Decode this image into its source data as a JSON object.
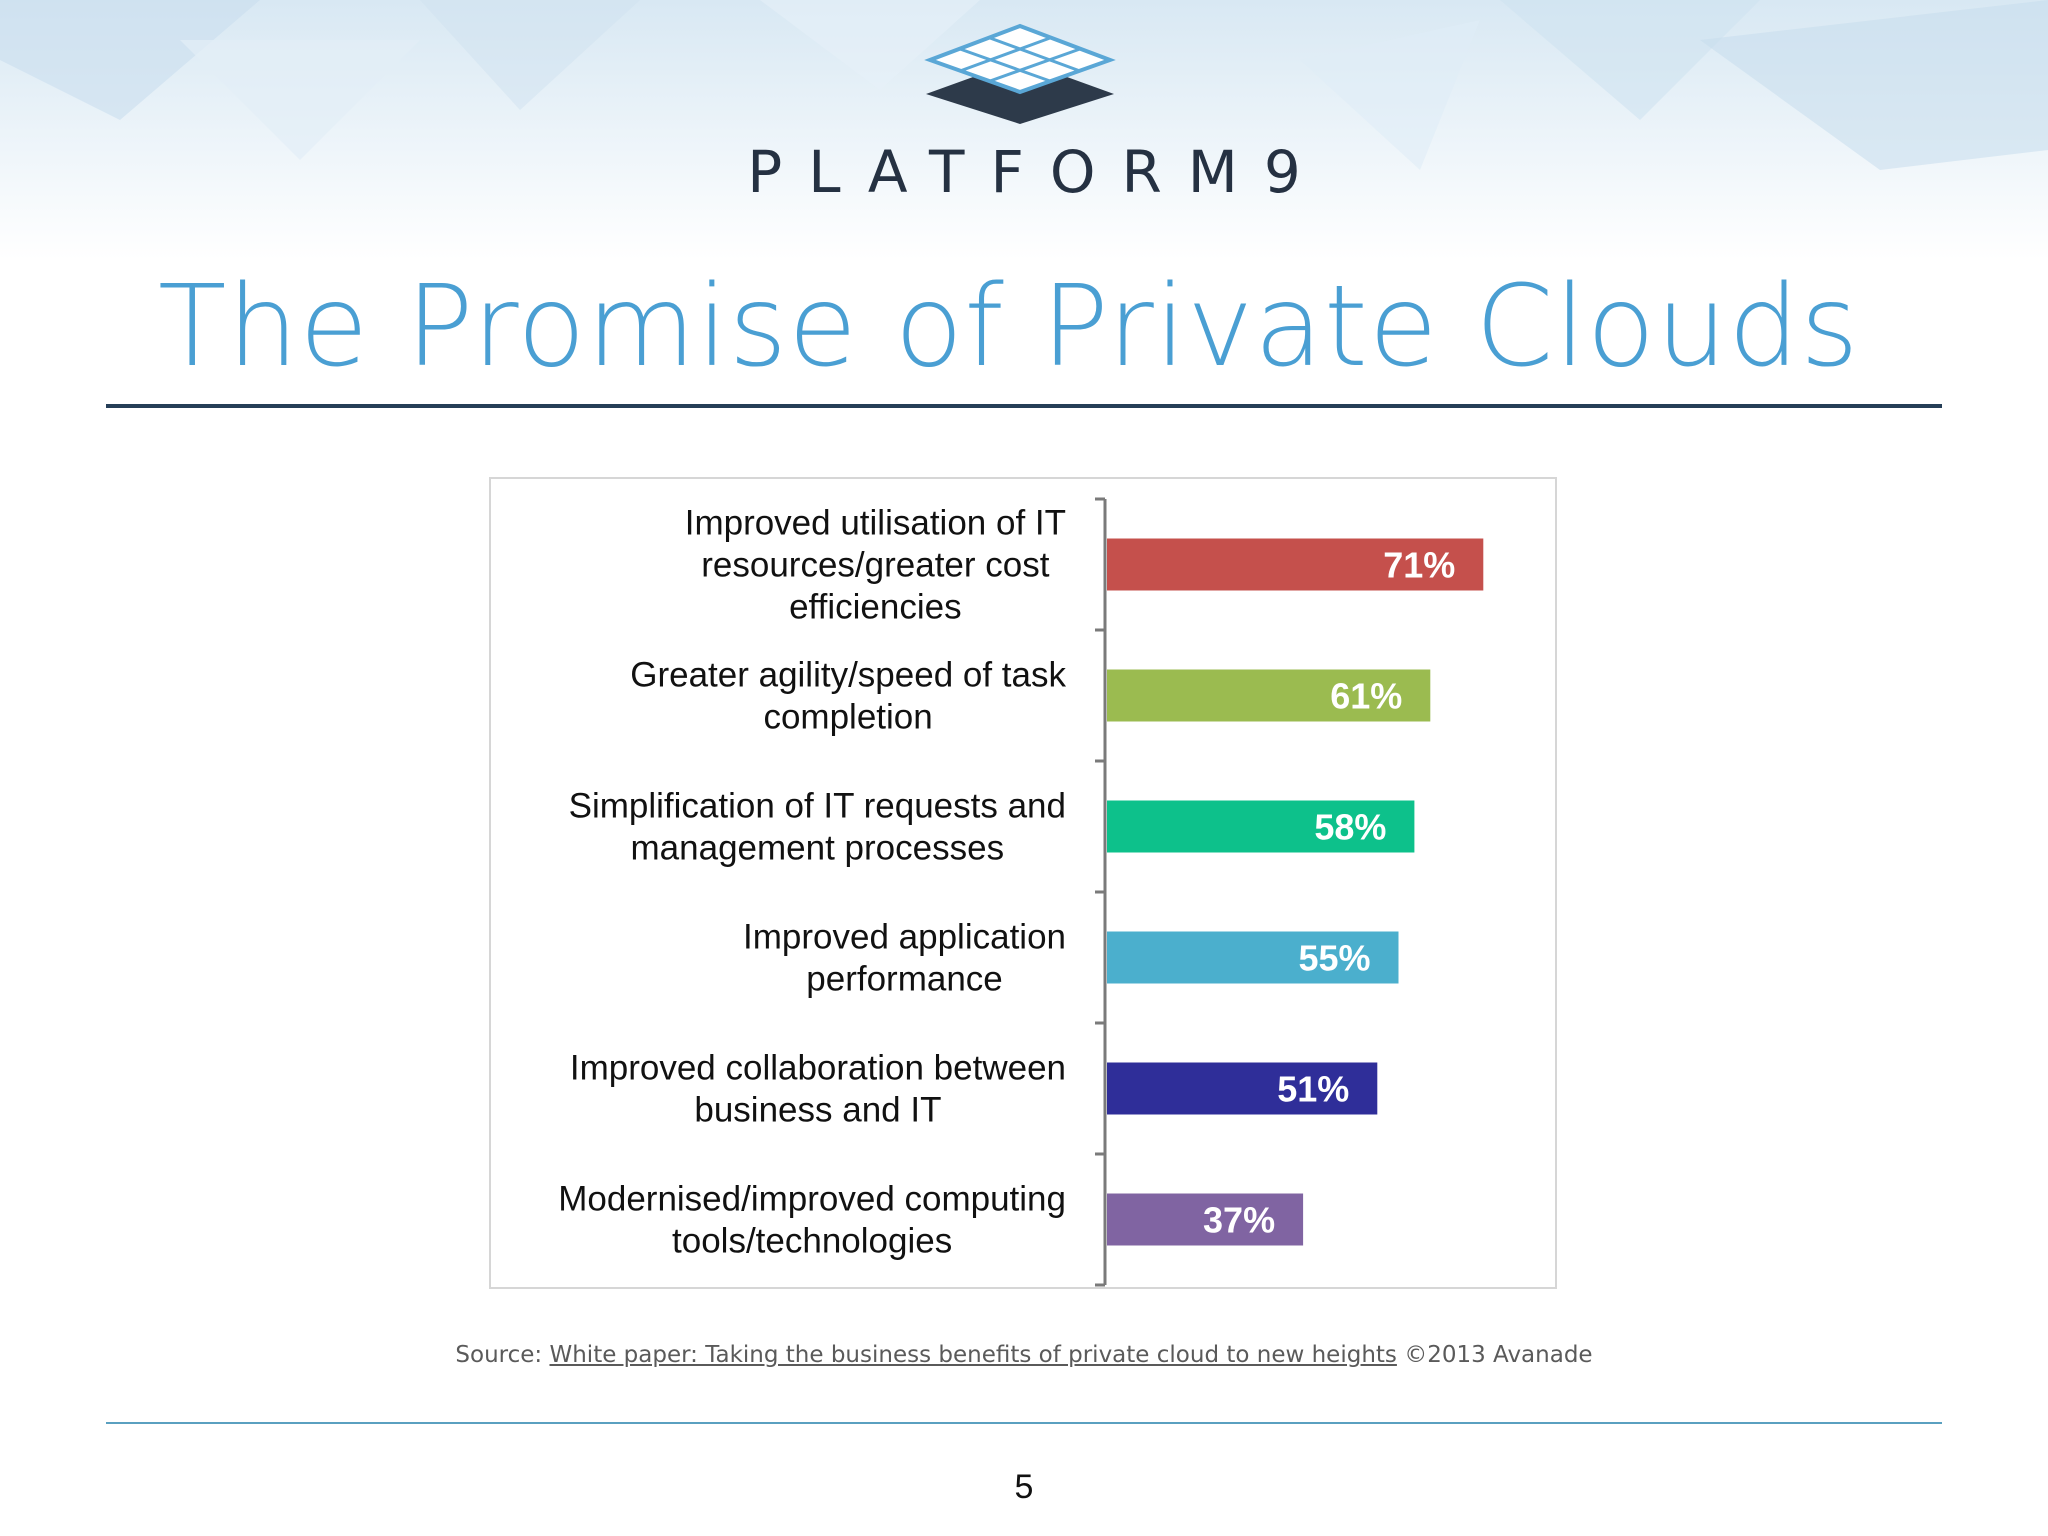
{
  "brand": {
    "name": "PLATFORM9",
    "logo_icon": "grid-tile-logo-icon"
  },
  "slide": {
    "title": "The Promise of Private Clouds",
    "page_number": "5"
  },
  "source": {
    "prefix": "Source: ",
    "link_text": "White paper: Taking the business benefits of private cloud to new heights",
    "suffix": " ©2013 Avanade"
  },
  "colors": {
    "title": "#4a9fd3",
    "brand_text": "#253142",
    "rule_top": "#253e57",
    "rule_bottom": "#5aa0c0"
  },
  "chart_data": {
    "type": "bar",
    "orientation": "horizontal",
    "categories": [
      [
        "Improved utilisation of IT",
        "resources/greater cost",
        "efficiencies"
      ],
      [
        "Greater agility/speed of task",
        "completion"
      ],
      [
        "Simplification of IT requests and",
        "management processes"
      ],
      [
        "Improved application",
        "performance"
      ],
      [
        "Improved collaboration between",
        "business and IT"
      ],
      [
        "Modernised/improved computing",
        "tools/technologies"
      ]
    ],
    "values": [
      71,
      61,
      58,
      55,
      51,
      37
    ],
    "labels": [
      "71%",
      "61%",
      "58%",
      "55%",
      "51%",
      "37%"
    ],
    "colors": [
      "#c5504c",
      "#9bbb50",
      "#0dc18b",
      "#4bafcd",
      "#2f2e99",
      "#8064a2"
    ],
    "xlim": [
      0,
      100
    ],
    "grid": false,
    "title": "",
    "xlabel": "",
    "ylabel": ""
  }
}
